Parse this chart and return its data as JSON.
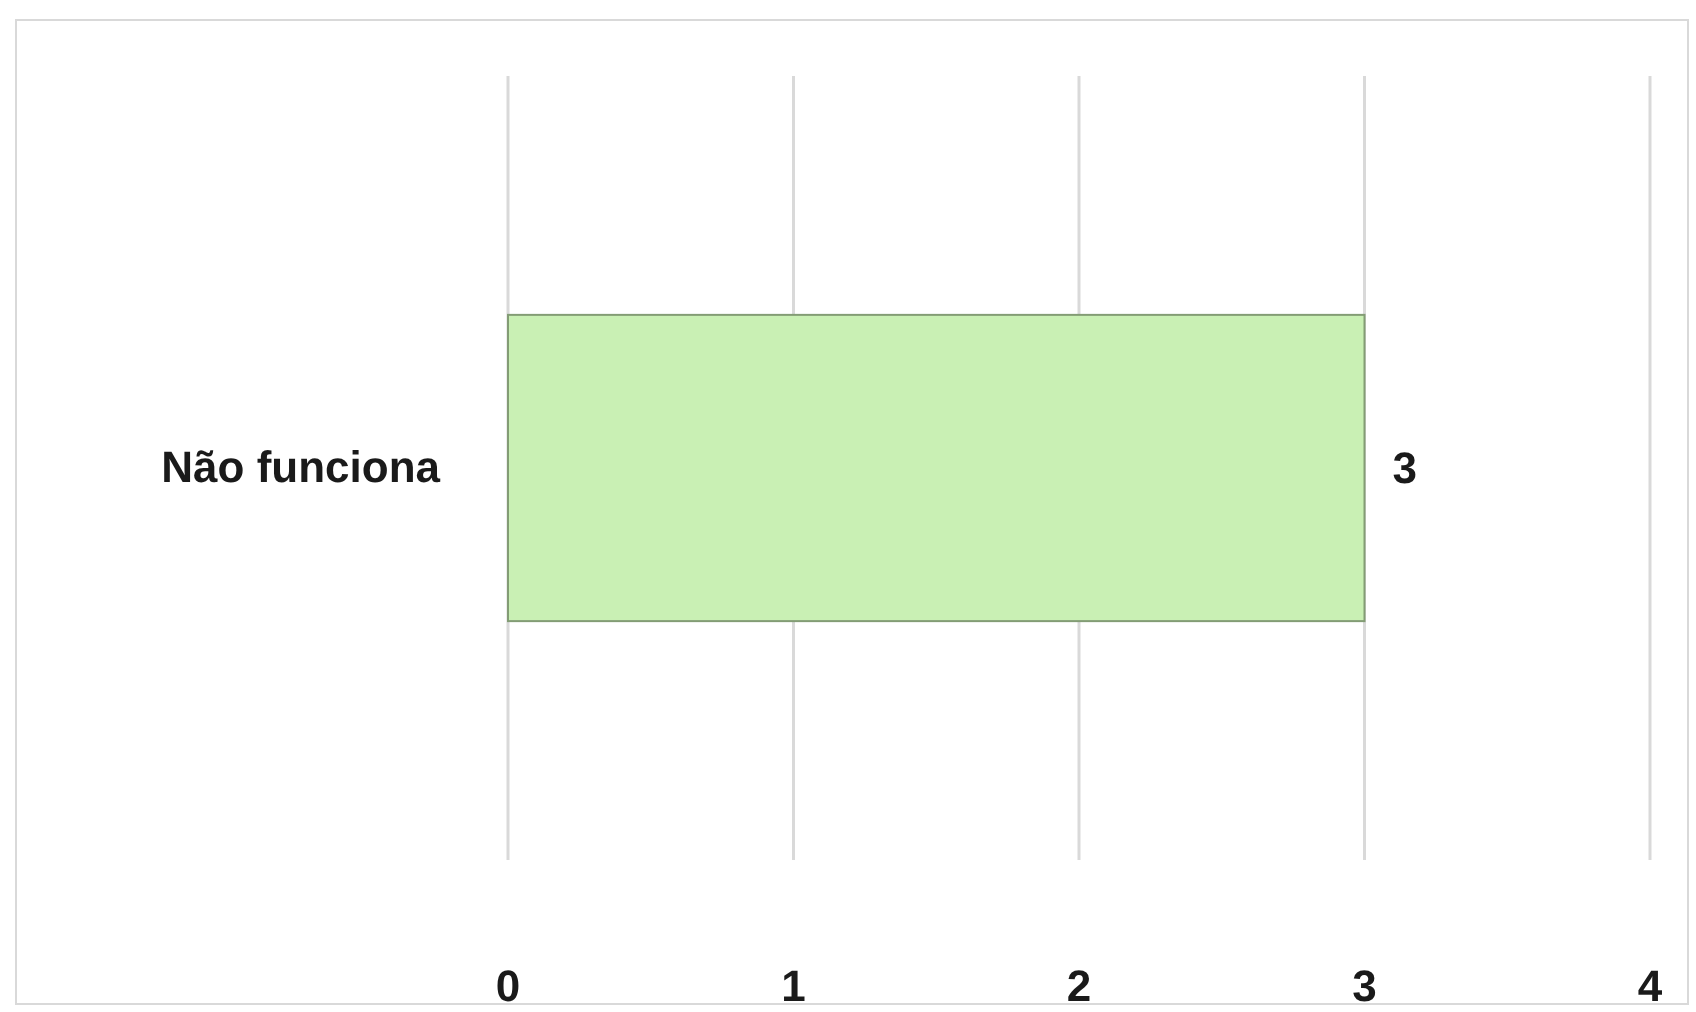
{
  "chart_data": {
    "type": "bar",
    "orientation": "horizontal",
    "categories": [
      "Não funciona"
    ],
    "values": [
      3
    ],
    "color": "#c9f0b4",
    "xlim": [
      0,
      4
    ],
    "xticks": [
      0,
      1,
      2,
      3,
      4
    ],
    "grid": "x",
    "data_labels": true
  }
}
